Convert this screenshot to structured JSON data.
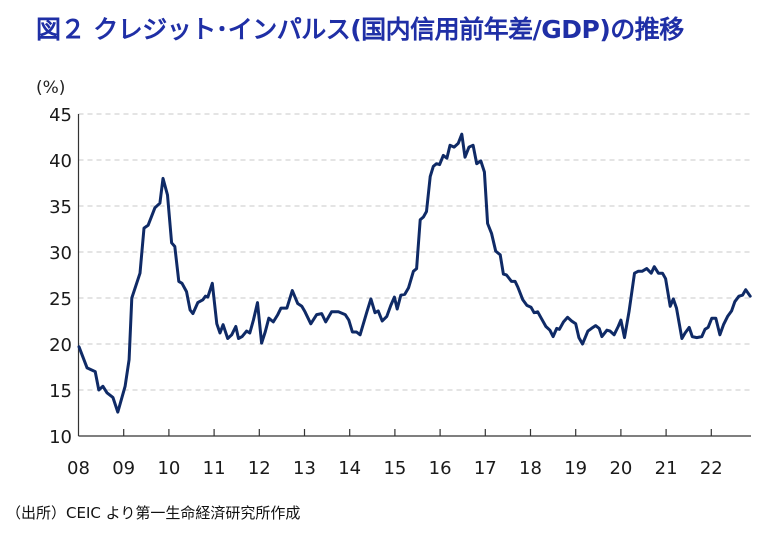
{
  "title": "図２ クレジット･インパルス(国内信用前年差/GDP)の推移",
  "source_note": "（出所）CEIC より第一生命経済研究所作成",
  "colors": {
    "title": "#1f2fa6",
    "line": "#0f2a66",
    "grid": "#c8c8c8",
    "axis": "#333333"
  },
  "chart_data": {
    "type": "line",
    "title": "図２ クレジット･インパルス(国内信用前年差/GDP)の推移",
    "xlabel": "",
    "ylabel": "(%)",
    "ylim": [
      10,
      45
    ],
    "yticks": [
      10,
      15,
      20,
      25,
      30,
      35,
      40,
      45
    ],
    "xlim": [
      2008,
      2023
    ],
    "xtick_labels": [
      "08",
      "09",
      "10",
      "11",
      "12",
      "13",
      "14",
      "15",
      "16",
      "17",
      "18",
      "19",
      "20",
      "21",
      "22"
    ],
    "grid": "horizontal-dashed",
    "legend": "none",
    "series": [
      {
        "name": "クレジット・インパルス",
        "points": [
          [
            2008.01,
            19.7
          ],
          [
            2008.19,
            17.4
          ],
          [
            2008.37,
            17.0
          ],
          [
            2008.45,
            15.0
          ],
          [
            2008.54,
            15.4
          ],
          [
            2008.63,
            14.7
          ],
          [
            2008.76,
            14.2
          ],
          [
            2008.87,
            12.6
          ],
          [
            2009.03,
            15.4
          ],
          [
            2009.12,
            18.3
          ],
          [
            2009.18,
            25.0
          ],
          [
            2009.36,
            27.7
          ],
          [
            2009.45,
            32.6
          ],
          [
            2009.54,
            32.9
          ],
          [
            2009.69,
            34.8
          ],
          [
            2009.8,
            35.3
          ],
          [
            2009.87,
            38.0
          ],
          [
            2009.97,
            36.2
          ],
          [
            2010.06,
            31.0
          ],
          [
            2010.13,
            30.6
          ],
          [
            2010.22,
            26.8
          ],
          [
            2010.29,
            26.6
          ],
          [
            2010.39,
            25.7
          ],
          [
            2010.47,
            23.7
          ],
          [
            2010.53,
            23.3
          ],
          [
            2010.64,
            24.5
          ],
          [
            2010.75,
            24.8
          ],
          [
            2010.81,
            25.2
          ],
          [
            2010.86,
            25.1
          ],
          [
            2010.96,
            26.6
          ],
          [
            2011.06,
            22.2
          ],
          [
            2011.13,
            21.2
          ],
          [
            2011.2,
            22.1
          ],
          [
            2011.3,
            20.6
          ],
          [
            2011.39,
            21.0
          ],
          [
            2011.48,
            21.9
          ],
          [
            2011.54,
            20.6
          ],
          [
            2011.62,
            20.8
          ],
          [
            2011.72,
            21.4
          ],
          [
            2011.79,
            21.2
          ],
          [
            2011.87,
            22.6
          ],
          [
            2011.96,
            24.5
          ],
          [
            2012.05,
            20.1
          ],
          [
            2012.13,
            21.3
          ],
          [
            2012.21,
            22.8
          ],
          [
            2012.31,
            22.4
          ],
          [
            2012.41,
            23.2
          ],
          [
            2012.48,
            23.9
          ],
          [
            2012.61,
            23.9
          ],
          [
            2012.73,
            25.8
          ],
          [
            2012.85,
            24.4
          ],
          [
            2012.94,
            24.1
          ],
          [
            2013.01,
            23.5
          ],
          [
            2013.14,
            22.2
          ],
          [
            2013.27,
            23.2
          ],
          [
            2013.38,
            23.3
          ],
          [
            2013.47,
            22.4
          ],
          [
            2013.6,
            23.5
          ],
          [
            2013.75,
            23.5
          ],
          [
            2013.9,
            23.2
          ],
          [
            2013.98,
            22.6
          ],
          [
            2014.06,
            21.3
          ],
          [
            2014.15,
            21.3
          ],
          [
            2014.23,
            21.0
          ],
          [
            2014.38,
            23.5
          ],
          [
            2014.47,
            24.9
          ],
          [
            2014.56,
            23.4
          ],
          [
            2014.63,
            23.6
          ],
          [
            2014.72,
            22.5
          ],
          [
            2014.82,
            23.0
          ],
          [
            2014.91,
            24.2
          ],
          [
            2014.99,
            25.1
          ],
          [
            2015.05,
            23.8
          ],
          [
            2015.13,
            25.3
          ],
          [
            2015.22,
            25.4
          ],
          [
            2015.3,
            26.1
          ],
          [
            2015.41,
            27.9
          ],
          [
            2015.48,
            28.2
          ],
          [
            2015.56,
            33.5
          ],
          [
            2015.63,
            33.8
          ],
          [
            2015.7,
            34.4
          ],
          [
            2015.78,
            38.2
          ],
          [
            2015.85,
            39.3
          ],
          [
            2015.92,
            39.6
          ],
          [
            2015.99,
            39.5
          ],
          [
            2016.07,
            40.5
          ],
          [
            2016.15,
            40.2
          ],
          [
            2016.22,
            41.6
          ],
          [
            2016.31,
            41.4
          ],
          [
            2016.4,
            41.8
          ],
          [
            2016.48,
            42.8
          ],
          [
            2016.55,
            40.3
          ],
          [
            2016.64,
            41.4
          ],
          [
            2016.73,
            41.6
          ],
          [
            2016.81,
            39.6
          ],
          [
            2016.9,
            39.9
          ],
          [
            2016.98,
            38.7
          ],
          [
            2017.05,
            33.1
          ],
          [
            2017.14,
            32.0
          ],
          [
            2017.23,
            30.1
          ],
          [
            2017.33,
            29.7
          ],
          [
            2017.4,
            27.6
          ],
          [
            2017.47,
            27.5
          ],
          [
            2017.58,
            26.8
          ],
          [
            2017.66,
            26.8
          ],
          [
            2017.72,
            26.2
          ],
          [
            2017.83,
            24.8
          ],
          [
            2017.92,
            24.2
          ],
          [
            2018.01,
            24.0
          ],
          [
            2018.08,
            23.4
          ],
          [
            2018.16,
            23.5
          ],
          [
            2018.25,
            22.7
          ],
          [
            2018.34,
            21.9
          ],
          [
            2018.43,
            21.5
          ],
          [
            2018.5,
            20.8
          ],
          [
            2018.58,
            21.7
          ],
          [
            2018.64,
            21.6
          ],
          [
            2018.73,
            22.4
          ],
          [
            2018.82,
            22.9
          ],
          [
            2018.91,
            22.5
          ],
          [
            2019.0,
            22.2
          ],
          [
            2019.07,
            20.7
          ],
          [
            2019.15,
            20.0
          ],
          [
            2019.27,
            21.4
          ],
          [
            2019.35,
            21.7
          ],
          [
            2019.44,
            22.0
          ],
          [
            2019.52,
            21.7
          ],
          [
            2019.58,
            20.8
          ],
          [
            2019.69,
            21.5
          ],
          [
            2019.76,
            21.4
          ],
          [
            2019.85,
            21.0
          ],
          [
            2019.94,
            21.9
          ],
          [
            2020.0,
            22.6
          ],
          [
            2020.08,
            20.7
          ],
          [
            2020.18,
            23.5
          ],
          [
            2020.3,
            27.7
          ],
          [
            2020.38,
            27.9
          ],
          [
            2020.47,
            27.9
          ],
          [
            2020.57,
            28.2
          ],
          [
            2020.67,
            27.7
          ],
          [
            2020.74,
            28.4
          ],
          [
            2020.83,
            27.7
          ],
          [
            2020.92,
            27.7
          ],
          [
            2020.99,
            27.1
          ],
          [
            2021.09,
            24.1
          ],
          [
            2021.16,
            24.9
          ],
          [
            2021.23,
            23.9
          ],
          [
            2021.35,
            20.6
          ],
          [
            2021.42,
            21.2
          ],
          [
            2021.51,
            21.8
          ],
          [
            2021.58,
            20.8
          ],
          [
            2021.68,
            20.7
          ],
          [
            2021.79,
            20.8
          ],
          [
            2021.86,
            21.6
          ],
          [
            2021.93,
            21.8
          ],
          [
            2022.01,
            22.8
          ],
          [
            2022.1,
            22.8
          ],
          [
            2022.19,
            21.0
          ],
          [
            2022.27,
            22.1
          ],
          [
            2022.36,
            23.0
          ],
          [
            2022.45,
            23.6
          ],
          [
            2022.52,
            24.6
          ],
          [
            2022.61,
            25.2
          ],
          [
            2022.69,
            25.3
          ],
          [
            2022.76,
            25.9
          ],
          [
            2022.86,
            25.2
          ]
        ]
      }
    ]
  }
}
